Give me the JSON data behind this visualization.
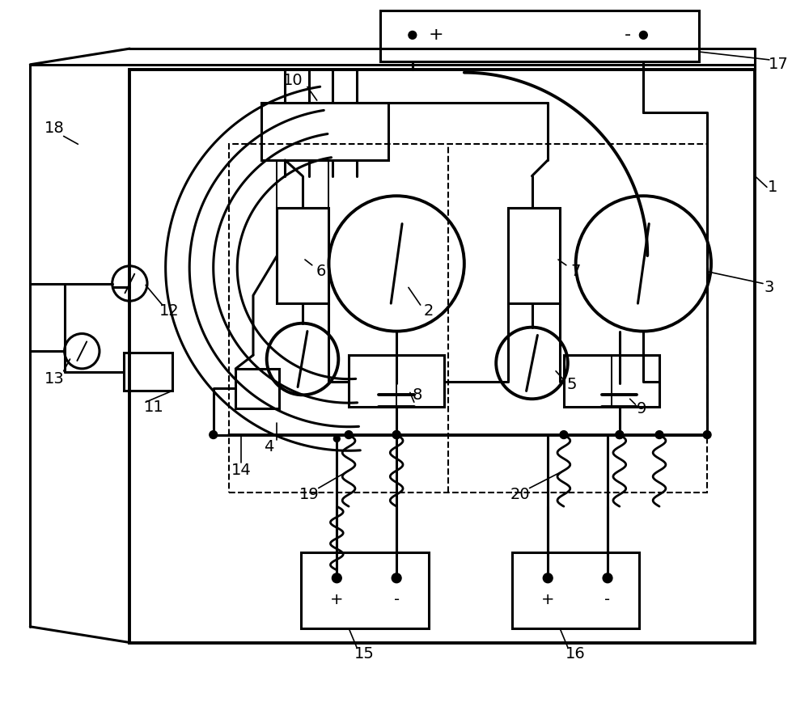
{
  "bg_color": "#ffffff",
  "line_color": "#000000",
  "fig_width": 10.0,
  "fig_height": 8.94
}
